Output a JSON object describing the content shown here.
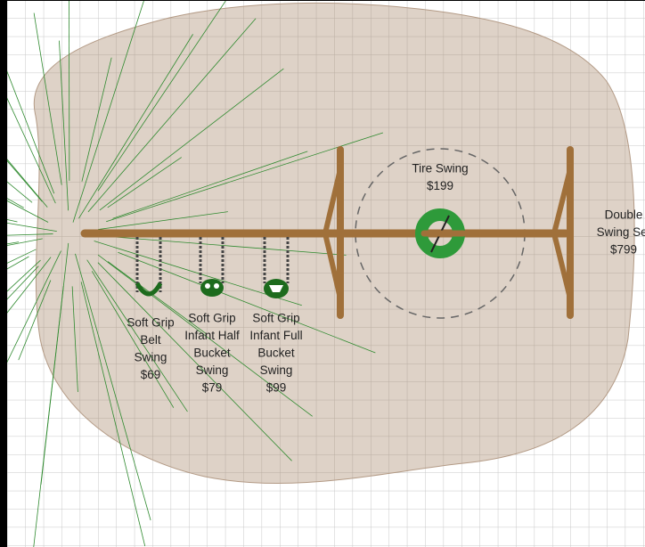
{
  "items": [
    {
      "label_lines": [
        "Soft Grip",
        "Belt",
        "Swing"
      ],
      "price": "$69"
    },
    {
      "label_lines": [
        "Soft Grip",
        "Infant Half",
        "Bucket",
        "Swing"
      ],
      "price": "$79"
    },
    {
      "label_lines": [
        "Soft Grip",
        "Infant Full",
        "Bucket",
        "Swing"
      ],
      "price": "$99"
    },
    {
      "label_lines": [
        "Tire Swing"
      ],
      "price": "$199"
    },
    {
      "label_lines": [
        "Double",
        "Swing Set"
      ],
      "price": "$799"
    }
  ]
}
